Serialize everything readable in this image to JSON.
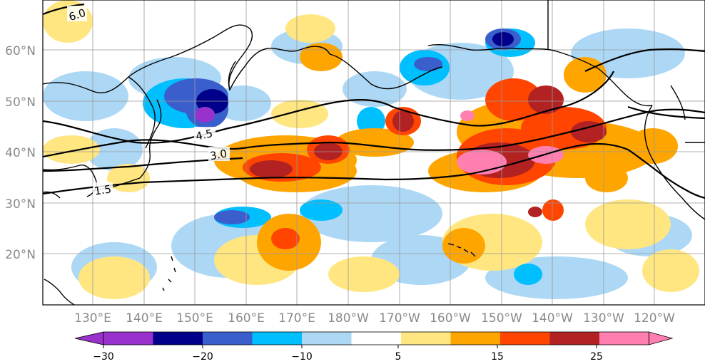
{
  "map": {
    "longitude_labels": [
      "130°E",
      "140°E",
      "150°E",
      "160°E",
      "170°E",
      "180°W",
      "170°W",
      "160°W",
      "150°W",
      "140°W",
      "130°W",
      "120°W"
    ],
    "latitude_labels": [
      "60°N",
      "50°N",
      "40°N",
      "30°N",
      "20°N"
    ],
    "contour_labels": [
      "6.0",
      "4.5",
      "3.0",
      "1.5"
    ],
    "colorbar": {
      "tick_labels": [
        "−30",
        "−20",
        "−10",
        "5",
        "15",
        "25"
      ],
      "colors": [
        "#9932cc",
        "#00008b",
        "#3a5fcd",
        "#00bfff",
        "#add8f5",
        "#ffffff",
        "#ffe680",
        "#ffa500",
        "#ff4500",
        "#b22222",
        "#ff7fb0"
      ]
    },
    "palette": {
      "purple": "#9932cc",
      "navy": "#00008b",
      "blue": "#3a5fcd",
      "cyan": "#00bfff",
      "lightblue": "#add8f5",
      "yellow": "#ffe680",
      "orange": "#ffa500",
      "redorange": "#ff4500",
      "darkred": "#b22222",
      "pink": "#ff7fb0"
    }
  }
}
